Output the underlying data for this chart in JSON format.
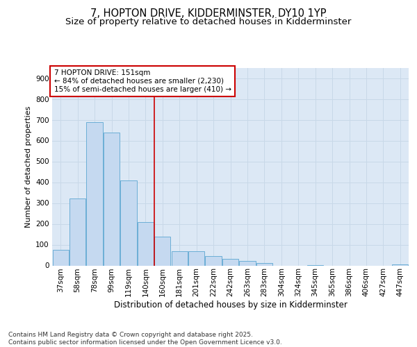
{
  "title1": "7, HOPTON DRIVE, KIDDERMINSTER, DY10 1YP",
  "title2": "Size of property relative to detached houses in Kidderminster",
  "xlabel": "Distribution of detached houses by size in Kidderminster",
  "ylabel": "Number of detached properties",
  "categories": [
    "37sqm",
    "58sqm",
    "78sqm",
    "99sqm",
    "119sqm",
    "140sqm",
    "160sqm",
    "181sqm",
    "201sqm",
    "222sqm",
    "242sqm",
    "263sqm",
    "283sqm",
    "304sqm",
    "324sqm",
    "345sqm",
    "365sqm",
    "386sqm",
    "406sqm",
    "427sqm",
    "447sqm"
  ],
  "values": [
    75,
    322,
    688,
    638,
    410,
    210,
    137,
    70,
    68,
    45,
    32,
    22,
    12,
    0,
    0,
    3,
    0,
    0,
    0,
    0,
    6
  ],
  "bar_color": "#c5d9f0",
  "bar_edge_color": "#6baed6",
  "grid_color": "#c8d8e8",
  "bg_color": "#dce8f5",
  "vline_x": 5.5,
  "vline_color": "#cc0000",
  "annotation_text": "7 HOPTON DRIVE: 151sqm\n← 84% of detached houses are smaller (2,230)\n15% of semi-detached houses are larger (410) →",
  "annotation_box_color": "#cc0000",
  "footnote": "Contains HM Land Registry data © Crown copyright and database right 2025.\nContains public sector information licensed under the Open Government Licence v3.0.",
  "ylim": [
    0,
    950
  ],
  "yticks": [
    0,
    100,
    200,
    300,
    400,
    500,
    600,
    700,
    800,
    900
  ],
  "title1_fontsize": 10.5,
  "title2_fontsize": 9.5,
  "xlabel_fontsize": 8.5,
  "ylabel_fontsize": 8,
  "tick_fontsize": 7.5,
  "annot_fontsize": 7.5,
  "footnote_fontsize": 6.5
}
